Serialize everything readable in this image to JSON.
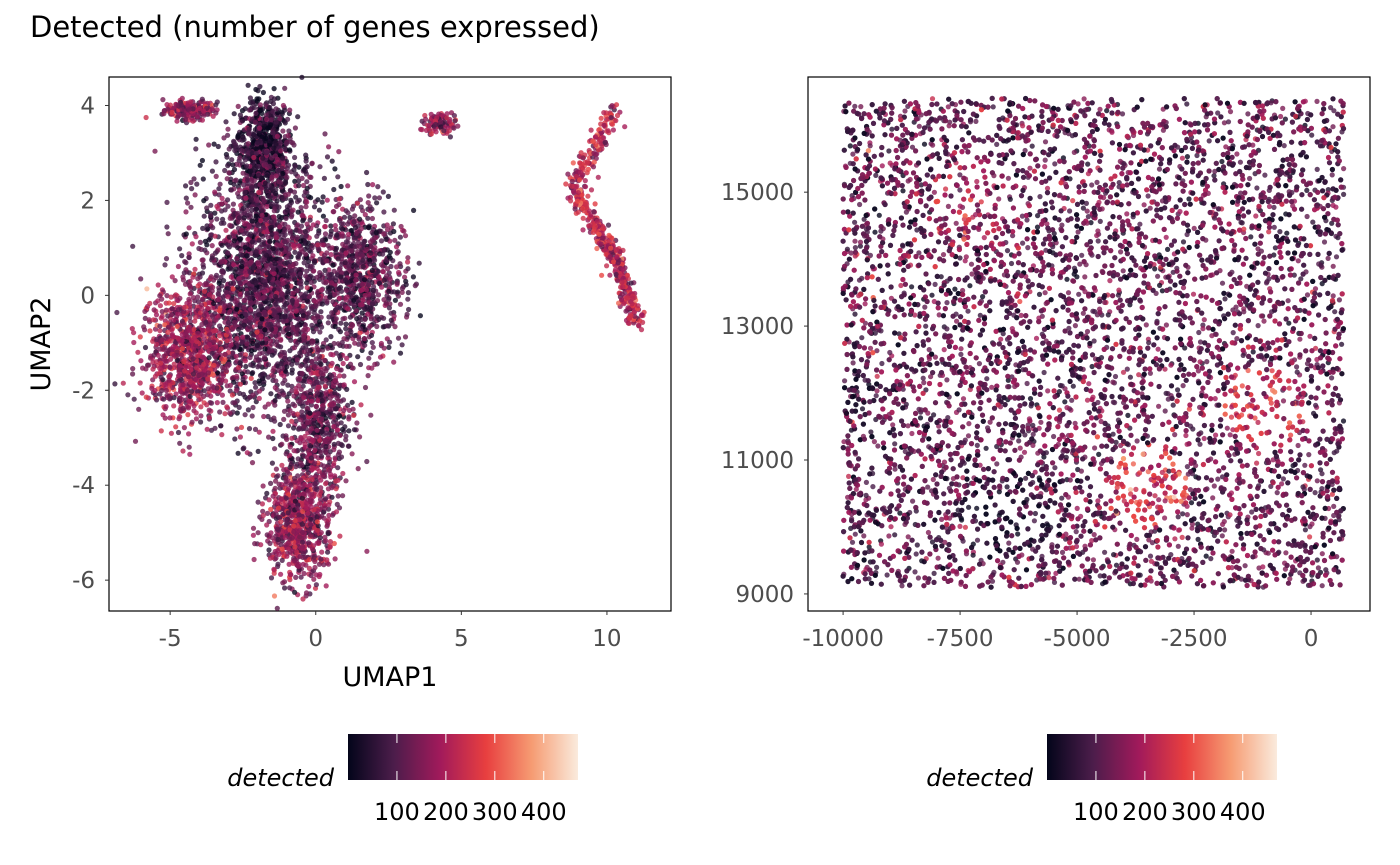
{
  "title": "Detected (number of genes expressed)",
  "colors": {
    "palette": [
      "#03051A",
      "#4C1D4B",
      "#A11A5B",
      "#E83F3F",
      "#F69C73",
      "#FAEBDD"
    ]
  },
  "chart_data": [
    {
      "type": "scatter",
      "panel": "umap",
      "xlabel": "UMAP1",
      "ylabel": "UMAP2",
      "xlim": [
        -7.1,
        12.2
      ],
      "ylim": [
        -6.65,
        4.6
      ],
      "xticks": [
        -5,
        0,
        5,
        10
      ],
      "xtick_labels": [
        "-5",
        "0",
        "5",
        "10"
      ],
      "yticks": [
        4,
        2,
        0,
        -2,
        -4,
        -6
      ],
      "ytick_labels": [
        "4",
        "2",
        "0",
        "-2",
        "-4",
        "-6"
      ],
      "color_var": "detected",
      "legend": {
        "title": "detected",
        "ticks": [
          100,
          200,
          300,
          400
        ],
        "tick_labels": [
          "100",
          "200",
          "300",
          "400"
        ],
        "range": [
          0,
          470
        ],
        "placement": "bottom"
      },
      "approx_clusters": [
        {
          "kind": "ellipse",
          "cx": -4.3,
          "cy": 3.9,
          "sx": 0.45,
          "sy": 0.1,
          "n": 180,
          "mean": 160
        },
        {
          "kind": "ellipse",
          "cx": -1.8,
          "cy": 3.1,
          "sx": 0.45,
          "sy": 0.55,
          "n": 700,
          "mean": 45
        },
        {
          "kind": "ellipse",
          "cx": -1.8,
          "cy": 0.3,
          "sx": 1.1,
          "sy": 1.3,
          "n": 2200,
          "mean": 95
        },
        {
          "kind": "ellipse",
          "cx": -4.4,
          "cy": -1.2,
          "sx": 0.8,
          "sy": 0.7,
          "n": 900,
          "mean": 175
        },
        {
          "kind": "ellipse",
          "cx": 1.5,
          "cy": 0.4,
          "sx": 0.75,
          "sy": 0.8,
          "n": 800,
          "mean": 105
        },
        {
          "kind": "ellipse",
          "cx": 0.1,
          "cy": -2.6,
          "sx": 0.5,
          "sy": 0.9,
          "n": 600,
          "mean": 120
        },
        {
          "kind": "ellipse",
          "cx": -0.6,
          "cy": -4.8,
          "sx": 0.55,
          "sy": 0.65,
          "n": 700,
          "mean": 165
        },
        {
          "kind": "ellipse",
          "cx": 4.3,
          "cy": 3.6,
          "sx": 0.3,
          "sy": 0.12,
          "n": 90,
          "mean": 170
        },
        {
          "kind": "path",
          "pts": [
            [
              10.3,
              3.9
            ],
            [
              8.8,
              2.3
            ],
            [
              9.9,
              1.2
            ],
            [
              10.5,
              0.4
            ],
            [
              11,
              -0.6
            ]
          ],
          "w": 0.15,
          "n": 500,
          "mean": 210
        }
      ]
    },
    {
      "type": "scatter",
      "panel": "spatial",
      "xlabel": "",
      "ylabel": "",
      "xlim": [
        -10750,
        1260
      ],
      "ylim": [
        8745,
        16720
      ],
      "xticks": [
        -10000,
        -7500,
        -5000,
        -2500,
        0
      ],
      "xtick_labels": [
        "-10000",
        "-7500",
        "-5000",
        "-2500",
        "0"
      ],
      "yticks": [
        15000,
        13000,
        11000,
        9000
      ],
      "ytick_labels": [
        "15000",
        "13000",
        "11000",
        "9000"
      ],
      "color_var": "detected",
      "legend": {
        "title": "detected",
        "ticks": [
          100,
          200,
          300,
          400
        ],
        "tick_labels": [
          "100",
          "200",
          "300",
          "400"
        ],
        "range": [
          0,
          470
        ],
        "placement": "bottom"
      },
      "approx_extent": {
        "x": [
          -10000,
          700
        ],
        "y": [
          9100,
          16400
        ],
        "n": 9000,
        "mean": 110
      },
      "approx_hotspots": [
        {
          "cx": -3500,
          "cy": 10600,
          "r": 900,
          "mean": 250
        },
        {
          "cx": -1000,
          "cy": 11800,
          "r": 900,
          "mean": 210
        },
        {
          "cx": -7200,
          "cy": 14800,
          "r": 1000,
          "mean": 170
        }
      ],
      "approx_darkspots": [
        {
          "cx": -6500,
          "cy": 10200,
          "r": 1000,
          "mean": 50
        },
        {
          "cx": -9800,
          "cy": 12000,
          "r": 500,
          "mean": 50
        }
      ]
    }
  ]
}
